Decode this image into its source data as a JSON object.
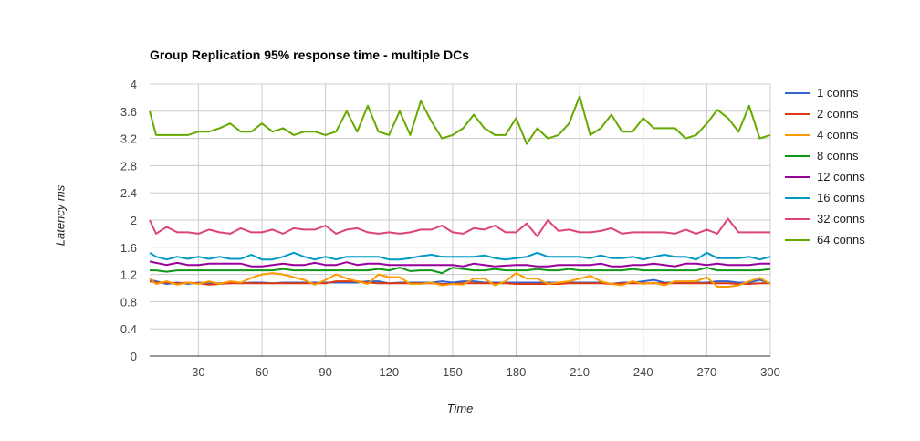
{
  "chart_data": {
    "type": "line",
    "title": "Group Replication 95% response time - multiple DCs",
    "xlabel": "Time",
    "ylabel": "Latency ms",
    "xlim": [
      7,
      300
    ],
    "ylim": [
      0,
      4
    ],
    "x_ticks": [
      30,
      60,
      90,
      120,
      150,
      180,
      210,
      240,
      270,
      300
    ],
    "y_ticks": [
      0,
      0.4,
      0.8,
      1.2,
      1.6,
      2,
      2.4,
      2.8,
      3.2,
      3.6,
      4
    ],
    "y_tick_labels": [
      "0",
      "0.4",
      "0.8",
      "1.2",
      "1.6",
      "2",
      "2.4",
      "2.8",
      "3.2",
      "3.6",
      "4"
    ],
    "grid": true,
    "legend_position": "right",
    "x": [
      5,
      10,
      15,
      20,
      25,
      30,
      35,
      40,
      45,
      50,
      55,
      60,
      65,
      70,
      75,
      80,
      85,
      90,
      95,
      100,
      105,
      110,
      115,
      120,
      125,
      130,
      135,
      140,
      145,
      150,
      155,
      160,
      165,
      170,
      175,
      180,
      185,
      190,
      195,
      200,
      205,
      210,
      215,
      220,
      225,
      230,
      235,
      240,
      245,
      250,
      255,
      260,
      265,
      270,
      275,
      280,
      285,
      290,
      295,
      300
    ],
    "series": [
      {
        "name": "1 conns",
        "color": "#3366cc",
        "values": [
          1.12,
          1.1,
          1.06,
          1.08,
          1.06,
          1.08,
          1.07,
          1.07,
          1.08,
          1.07,
          1.08,
          1.08,
          1.07,
          1.08,
          1.08,
          1.08,
          1.08,
          1.08,
          1.08,
          1.08,
          1.08,
          1.1,
          1.1,
          1.07,
          1.08,
          1.08,
          1.08,
          1.08,
          1.1,
          1.08,
          1.1,
          1.1,
          1.08,
          1.08,
          1.08,
          1.08,
          1.08,
          1.08,
          1.08,
          1.08,
          1.08,
          1.08,
          1.08,
          1.08,
          1.06,
          1.08,
          1.08,
          1.1,
          1.12,
          1.08,
          1.08,
          1.08,
          1.08,
          1.08,
          1.1,
          1.1,
          1.08,
          1.08,
          1.12,
          1.07
        ]
      },
      {
        "name": "2 conns",
        "color": "#dc3912",
        "values": [
          1.1,
          1.08,
          1.08,
          1.07,
          1.08,
          1.07,
          1.05,
          1.06,
          1.07,
          1.07,
          1.07,
          1.07,
          1.07,
          1.07,
          1.07,
          1.07,
          1.07,
          1.07,
          1.1,
          1.1,
          1.1,
          1.08,
          1.07,
          1.07,
          1.07,
          1.07,
          1.07,
          1.07,
          1.06,
          1.06,
          1.07,
          1.07,
          1.07,
          1.07,
          1.07,
          1.06,
          1.06,
          1.06,
          1.06,
          1.06,
          1.07,
          1.07,
          1.07,
          1.07,
          1.06,
          1.07,
          1.07,
          1.07,
          1.07,
          1.07,
          1.07,
          1.07,
          1.07,
          1.07,
          1.07,
          1.07,
          1.06,
          1.06,
          1.07,
          1.07
        ]
      },
      {
        "name": "4 conns",
        "color": "#ff9900",
        "values": [
          1.14,
          1.06,
          1.1,
          1.05,
          1.08,
          1.06,
          1.1,
          1.06,
          1.1,
          1.08,
          1.15,
          1.2,
          1.22,
          1.2,
          1.16,
          1.12,
          1.05,
          1.12,
          1.2,
          1.14,
          1.1,
          1.06,
          1.2,
          1.16,
          1.16,
          1.06,
          1.06,
          1.08,
          1.04,
          1.06,
          1.05,
          1.14,
          1.14,
          1.04,
          1.1,
          1.22,
          1.14,
          1.14,
          1.06,
          1.08,
          1.1,
          1.14,
          1.18,
          1.1,
          1.06,
          1.04,
          1.1,
          1.06,
          1.08,
          1.04,
          1.1,
          1.1,
          1.1,
          1.16,
          1.02,
          1.02,
          1.04,
          1.1,
          1.15,
          1.06
        ]
      },
      {
        "name": "8 conns",
        "color": "#109618",
        "values": [
          1.26,
          1.26,
          1.24,
          1.26,
          1.26,
          1.26,
          1.26,
          1.26,
          1.26,
          1.26,
          1.26,
          1.26,
          1.26,
          1.28,
          1.26,
          1.26,
          1.26,
          1.26,
          1.26,
          1.26,
          1.26,
          1.26,
          1.28,
          1.26,
          1.3,
          1.25,
          1.26,
          1.26,
          1.22,
          1.3,
          1.28,
          1.26,
          1.26,
          1.28,
          1.26,
          1.26,
          1.26,
          1.28,
          1.26,
          1.26,
          1.28,
          1.26,
          1.26,
          1.26,
          1.26,
          1.26,
          1.28,
          1.26,
          1.26,
          1.26,
          1.26,
          1.26,
          1.26,
          1.3,
          1.26,
          1.26,
          1.26,
          1.26,
          1.26,
          1.28
        ]
      },
      {
        "name": "12 conns",
        "color": "#990099",
        "values": [
          1.39,
          1.37,
          1.34,
          1.37,
          1.34,
          1.34,
          1.36,
          1.36,
          1.36,
          1.36,
          1.32,
          1.32,
          1.34,
          1.36,
          1.34,
          1.34,
          1.37,
          1.34,
          1.34,
          1.38,
          1.34,
          1.36,
          1.36,
          1.34,
          1.34,
          1.34,
          1.34,
          1.34,
          1.34,
          1.34,
          1.32,
          1.36,
          1.34,
          1.32,
          1.33,
          1.34,
          1.34,
          1.32,
          1.32,
          1.34,
          1.34,
          1.34,
          1.34,
          1.36,
          1.32,
          1.32,
          1.34,
          1.34,
          1.36,
          1.34,
          1.32,
          1.36,
          1.36,
          1.34,
          1.36,
          1.34,
          1.34,
          1.34,
          1.36,
          1.36
        ]
      },
      {
        "name": "16 conns",
        "color": "#0099c6",
        "values": [
          1.52,
          1.46,
          1.42,
          1.46,
          1.43,
          1.46,
          1.43,
          1.46,
          1.43,
          1.43,
          1.49,
          1.42,
          1.42,
          1.46,
          1.52,
          1.46,
          1.42,
          1.46,
          1.42,
          1.46,
          1.46,
          1.46,
          1.46,
          1.42,
          1.42,
          1.44,
          1.47,
          1.49,
          1.46,
          1.46,
          1.46,
          1.46,
          1.48,
          1.44,
          1.42,
          1.44,
          1.46,
          1.52,
          1.46,
          1.46,
          1.46,
          1.46,
          1.44,
          1.48,
          1.44,
          1.44,
          1.46,
          1.42,
          1.46,
          1.49,
          1.46,
          1.46,
          1.42,
          1.52,
          1.44,
          1.44,
          1.44,
          1.46,
          1.42,
          1.46
        ]
      },
      {
        "name": "32 conns",
        "color": "#dd4477",
        "values": [
          2.0,
          1.8,
          1.9,
          1.82,
          1.82,
          1.8,
          1.86,
          1.82,
          1.8,
          1.88,
          1.82,
          1.82,
          1.86,
          1.8,
          1.88,
          1.86,
          1.86,
          1.92,
          1.8,
          1.86,
          1.88,
          1.82,
          1.8,
          1.82,
          1.8,
          1.82,
          1.86,
          1.86,
          1.92,
          1.82,
          1.8,
          1.88,
          1.86,
          1.92,
          1.82,
          1.82,
          1.95,
          1.76,
          2.0,
          1.84,
          1.86,
          1.82,
          1.82,
          1.84,
          1.88,
          1.8,
          1.82,
          1.82,
          1.82,
          1.82,
          1.8,
          1.86,
          1.8,
          1.86,
          1.8,
          2.02,
          1.82,
          1.82,
          1.82,
          1.82
        ]
      },
      {
        "name": "64 conns",
        "color": "#66aa00",
        "values": [
          3.6,
          3.25,
          3.25,
          3.25,
          3.25,
          3.3,
          3.3,
          3.35,
          3.42,
          3.3,
          3.3,
          3.42,
          3.3,
          3.35,
          3.25,
          3.3,
          3.3,
          3.25,
          3.3,
          3.6,
          3.3,
          3.68,
          3.3,
          3.25,
          3.6,
          3.25,
          3.75,
          3.45,
          3.2,
          3.25,
          3.35,
          3.55,
          3.35,
          3.25,
          3.25,
          3.5,
          3.12,
          3.35,
          3.2,
          3.25,
          3.42,
          3.82,
          3.25,
          3.35,
          3.55,
          3.3,
          3.3,
          3.5,
          3.35,
          3.35,
          3.35,
          3.2,
          3.25,
          3.42,
          3.62,
          3.5,
          3.3,
          3.68,
          3.2,
          3.25
        ]
      }
    ]
  }
}
